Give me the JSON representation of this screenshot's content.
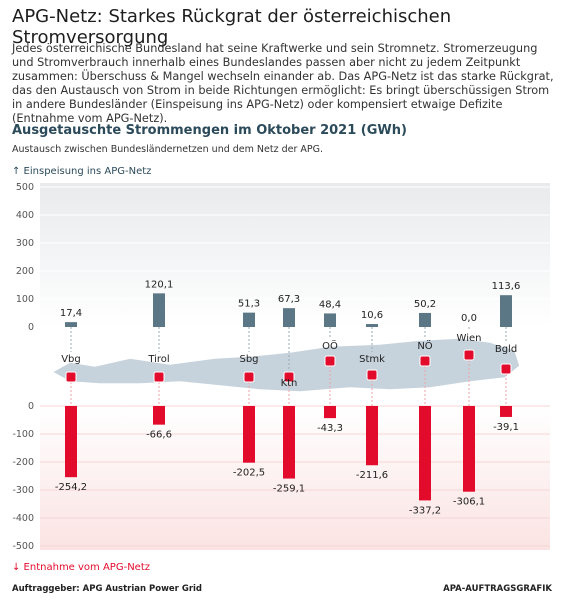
{
  "header": {
    "title": "APG-Netz: Starkes Rückgrat der österreichischen Stromversorgung",
    "intro": "Jedes österreichische Bundesland hat seine Kraftwerke und sein Stromnetz. Stromerzeugung und Stromverbrauch innerhalb eines Bundeslandes passen aber nicht zu jedem Zeitpunkt zusammen: Überschuss & Mangel wechseln einander ab. Das APG-Netz ist das starke Rückgrat, das den Austausch von Strom in beide Richtungen ermöglicht: Es bringt überschüssigen Strom in andere Bundesländer (Einspeisung ins APG-Netz) oder kompensiert etwaige Defizite (Entnahme vom APG-Netz)."
  },
  "chart_data": {
    "type": "bar",
    "title": "Ausgetauschte Strommengen im Oktober 2021 (GWh)",
    "subtitle": "Austausch zwischen Bundesländernetzen und dem Netz der APG.",
    "categories": [
      "Vbg",
      "Tirol",
      "Sbg",
      "Ktn",
      "OÖ",
      "Stmk",
      "NÖ",
      "Wien",
      "Bgld"
    ],
    "series": [
      {
        "name": "↑ Einspeisung ins APG-Netz",
        "color": "#5b7684",
        "values": [
          17.4,
          120.1,
          51.3,
          67.3,
          48.4,
          10.6,
          50.2,
          0.0,
          113.6
        ],
        "value_labels": [
          "17,4",
          "120,1",
          "51,3",
          "67,3",
          "48,4",
          "10,6",
          "50,2",
          "0,0",
          "113,6"
        ]
      },
      {
        "name": "↓ Entnahme vom APG-Netz",
        "color": "#e30b2c",
        "axis": "y2",
        "values": [
          -254.2,
          -66.6,
          -202.5,
          -259.1,
          -43.3,
          -211.6,
          -337.2,
          -306.1,
          -39.1
        ],
        "value_labels": [
          "-254,2",
          "-66,6",
          "-202,5",
          "-259,1",
          "-43,3",
          "-211,6",
          "-337,2",
          "-306,1",
          "-39,1"
        ]
      }
    ],
    "ylim": [
      0,
      500
    ],
    "yticks": [
      0,
      100,
      200,
      300,
      400,
      500
    ],
    "y2lim": [
      -500,
      0
    ],
    "y2ticks": [
      0,
      -100,
      -200,
      -300,
      -400,
      -500
    ]
  },
  "footer": {
    "source": "Auftraggeber: APG Austrian Power Grid",
    "credit": "APA-AUFTRAGSGRAFIK"
  }
}
